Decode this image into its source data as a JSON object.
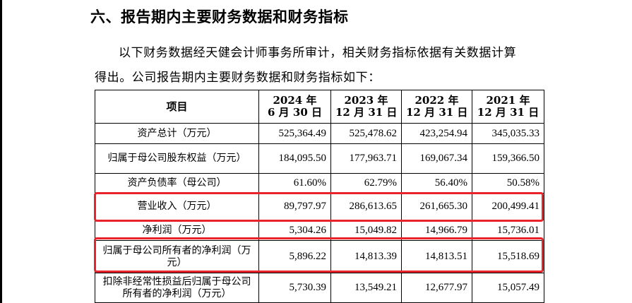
{
  "heading": "六、报告期内主要财务数据和财务指标",
  "intro_line1": "以下财务数据经天健会计师事务所审计，相关财务指标依据有关数据计算",
  "intro_line2": "得出。公司报告期内主要财务数据和财务指标如下：",
  "table": {
    "header_item": "项目",
    "columns": [
      {
        "line1": "2024 年",
        "line2": "6 月 30 日"
      },
      {
        "line1": "2023 年",
        "line2": "12 月 31 日"
      },
      {
        "line1": "2022 年",
        "line2": "12 月 31 日"
      },
      {
        "line1": "2021 年",
        "line2": "12 月 31 日"
      }
    ],
    "rows": [
      {
        "label": "资产总计（万元）",
        "values": [
          "525,364.49",
          "525,478.62",
          "423,254.94",
          "345,035.33"
        ]
      },
      {
        "label": "归属于母公司股东权益（万元）",
        "values": [
          "184,095.50",
          "177,963.71",
          "169,067.34",
          "159,366.50"
        ]
      },
      {
        "label": "资产负债率（母公司）",
        "values": [
          "61.60%",
          "62.79%",
          "56.40%",
          "50.58%"
        ]
      },
      {
        "label": "营业收入（万元）",
        "values": [
          "89,797.97",
          "286,613.65",
          "261,665.30",
          "200,499.41"
        ]
      },
      {
        "label": "净利润（万元）",
        "values": [
          "5,304.26",
          "15,049.82",
          "14,966.79",
          "15,736.01"
        ]
      },
      {
        "label": "归属于母公司所有者的净利润（万元）",
        "values": [
          "5,896.22",
          "14,813.39",
          "14,813.51",
          "15,518.69"
        ]
      },
      {
        "label": "扣除非经常性损益后归属于母公司所有者的净利润（万元）",
        "values": [
          "5,730.39",
          "13,549.21",
          "12,677.97",
          "15,057.49"
        ]
      }
    ]
  },
  "highlight_color": "#e8232b"
}
